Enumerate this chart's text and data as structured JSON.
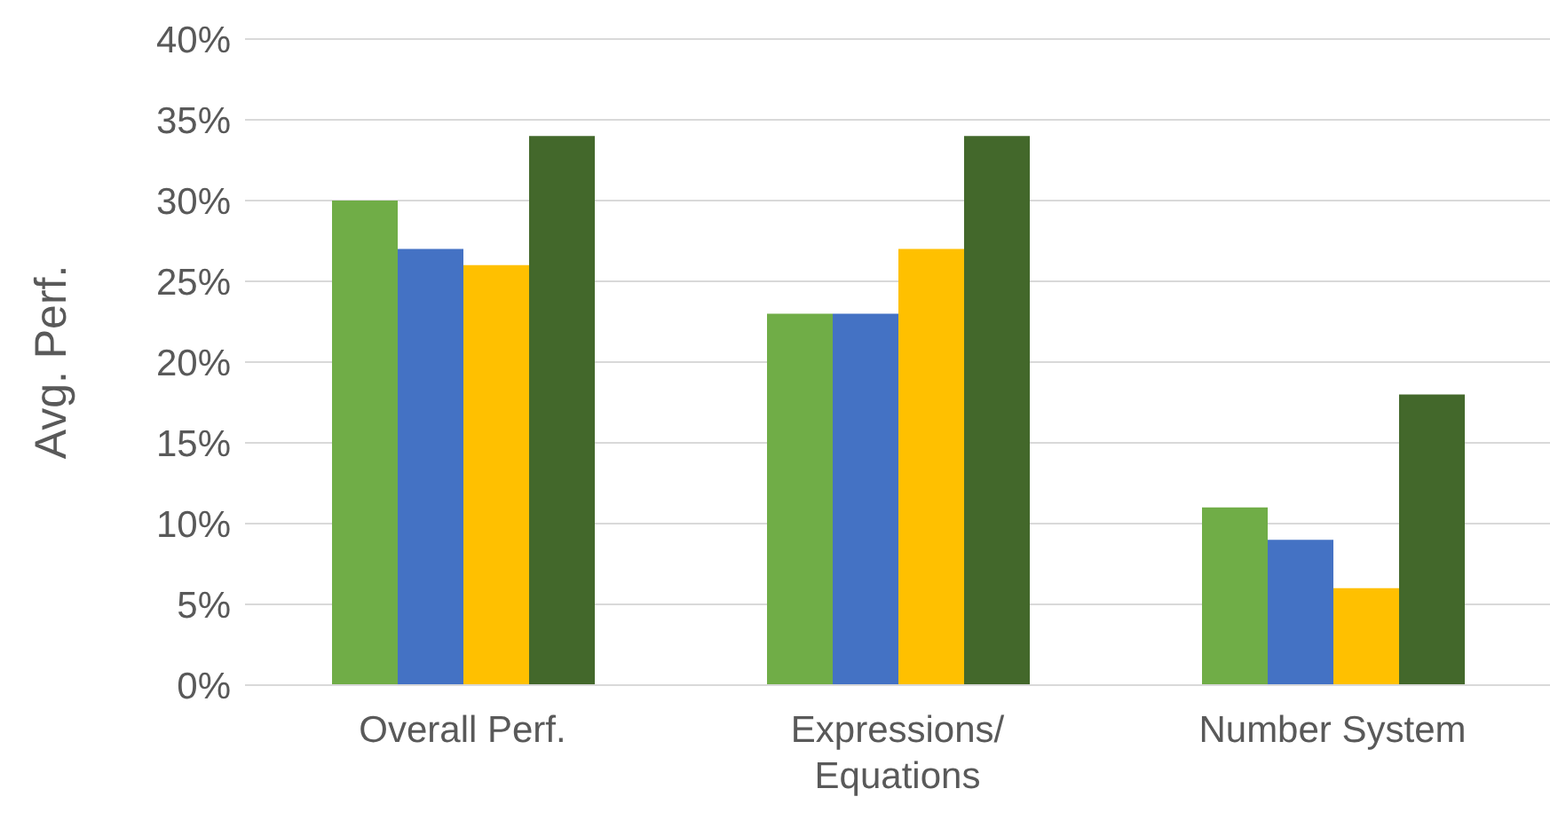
{
  "chart_data": {
    "type": "bar",
    "ylabel": "Avg. Perf.",
    "categories": [
      "Overall Perf.",
      "Expressions/ Equations",
      "Number System"
    ],
    "series": [
      {
        "color": "#70ad47",
        "values": [
          0.3,
          0.23,
          0.11
        ]
      },
      {
        "color": "#4472c4",
        "values": [
          0.27,
          0.23,
          0.09
        ]
      },
      {
        "color": "#ffc000",
        "values": [
          0.26,
          0.27,
          0.06
        ]
      },
      {
        "color": "#43682b",
        "values": [
          0.34,
          0.34,
          0.18
        ]
      }
    ],
    "ylim": [
      0,
      0.4
    ],
    "yticks": [
      {
        "value": 0,
        "label": "0%"
      },
      {
        "value": 0.05,
        "label": "5%"
      },
      {
        "value": 0.1,
        "label": "10%"
      },
      {
        "value": 0.15,
        "label": "15%"
      },
      {
        "value": 0.2,
        "label": "20%"
      },
      {
        "value": 0.25,
        "label": "25%"
      },
      {
        "value": 0.3,
        "label": "30%"
      },
      {
        "value": 0.35,
        "label": "35%"
      },
      {
        "value": 0.4,
        "label": "40%"
      }
    ],
    "grid": "y",
    "legend": false
  }
}
